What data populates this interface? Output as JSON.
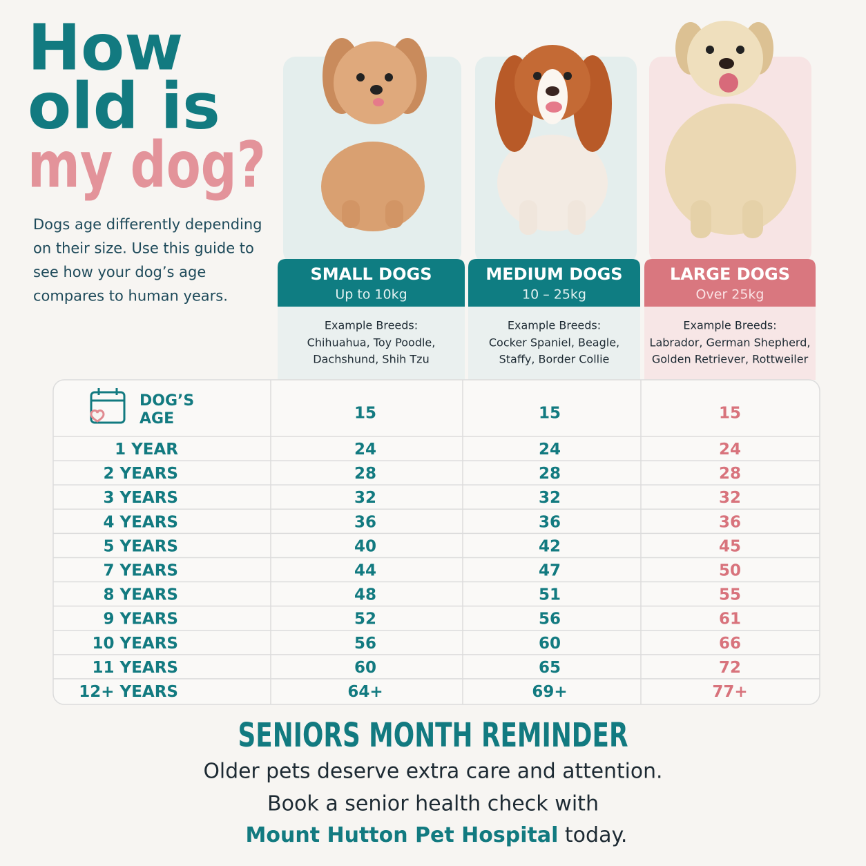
{
  "title": {
    "line1": "How",
    "line2": "old is",
    "line3": "my dog?"
  },
  "intro": [
    "Dogs age differently depending",
    "on their size. Use this guide to",
    "see how your dog’s age",
    "compares to human years."
  ],
  "columns": [
    {
      "name": "SMALL DOGS",
      "weight": "Up to 10kg",
      "breeds_label": "Example Breeds:",
      "breeds": [
        "Chihuahua, Toy Poodle,",
        "Dachshund, Shih Tzu"
      ]
    },
    {
      "name": "MEDIUM DOGS",
      "weight": "10 – 25kg",
      "breeds_label": "Example Breeds:",
      "breeds": [
        "Cocker Spaniel, Beagle,",
        "Staffy, Border Collie"
      ]
    },
    {
      "name": "LARGE DOGS",
      "weight": "Over 25kg",
      "breeds_label": "Example Breeds:",
      "breeds": [
        "Labrador, German Shepherd,",
        "Golden Retriever, Rottweiler"
      ]
    }
  ],
  "table": {
    "header": {
      "label": [
        "DOG’S",
        "AGE"
      ],
      "values": [
        "15",
        "15",
        "15"
      ]
    },
    "rows": [
      [
        "1 YEAR",
        "24",
        "24",
        "24"
      ],
      [
        "2 YEARS",
        "28",
        "28",
        "28"
      ],
      [
        "3 YEARS",
        "32",
        "32",
        "32"
      ],
      [
        "4 YEARS",
        "36",
        "36",
        "36"
      ],
      [
        "5 YEARS",
        "40",
        "42",
        "45"
      ],
      [
        "7 YEARS",
        "44",
        "47",
        "50"
      ],
      [
        "8 YEARS",
        "48",
        "51",
        "55"
      ],
      [
        "9 YEARS",
        "52",
        "56",
        "61"
      ],
      [
        "10 YEARS",
        "56",
        "60",
        "66"
      ],
      [
        "11 YEARS",
        "60",
        "65",
        "72"
      ],
      [
        "12+ YEARS",
        "64+",
        "69+",
        "77+"
      ]
    ]
  },
  "footer": {
    "heading": "SENIORS MONTH REMINDER",
    "line1": "Older pets deserve extra care and attention.",
    "line2": "Book a senior health check with",
    "clinic": "Mount Hutton Pet Hospital",
    "line3_end": "today."
  }
}
